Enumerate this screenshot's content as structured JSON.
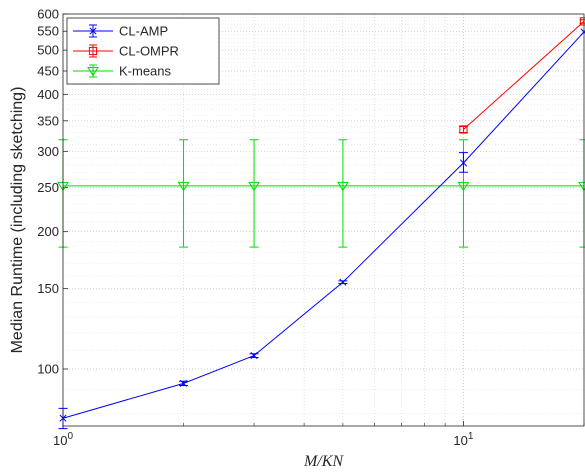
{
  "chart_data": {
    "type": "line",
    "xlabel": "M/KN",
    "ylabel": "Median Runtime (including sketching)",
    "xscale": "log",
    "yscale": "log",
    "xlim": [
      1,
      20
    ],
    "ylim": [
      75,
      600
    ],
    "grid": true,
    "minor_grid": true,
    "legend_position": "top-left",
    "x_ticks": [
      {
        "v": 1,
        "base": "10",
        "exp": "0"
      },
      {
        "v": 10,
        "base": "10",
        "exp": "1"
      }
    ],
    "y_ticks": [
      100,
      150,
      200,
      250,
      300,
      350,
      400,
      450,
      500,
      550,
      600
    ],
    "y_tick_labels": [
      "100",
      "150",
      "200",
      "250",
      "300",
      "350",
      "400",
      "450",
      "500",
      "550",
      "600"
    ],
    "series": [
      {
        "name": "CL-AMP",
        "color": "#0000ff",
        "marker": "x",
        "x": [
          1,
          2,
          3,
          5,
          10,
          20
        ],
        "y": [
          78,
          93,
          107,
          155,
          283,
          548
        ],
        "err_low": [
          4,
          1,
          1,
          1,
          13,
          0
        ],
        "err_high": [
          4,
          1,
          1,
          1,
          15,
          0
        ]
      },
      {
        "name": "CL-OMPR",
        "color": "#ff0000",
        "marker": "square",
        "x": [
          10,
          20
        ],
        "y": [
          335,
          578
        ],
        "err_low": [
          5,
          5
        ],
        "err_high": [
          5,
          5
        ]
      },
      {
        "name": "K-means",
        "color": "#00dd00",
        "marker": "triangle-down",
        "x": [
          1,
          2,
          3,
          5,
          10,
          20
        ],
        "y": [
          252,
          252,
          252,
          252,
          252,
          252
        ],
        "err_low": [
          67,
          67,
          67,
          67,
          67,
          67
        ],
        "err_high": [
          66,
          66,
          66,
          66,
          66,
          66
        ]
      }
    ]
  }
}
